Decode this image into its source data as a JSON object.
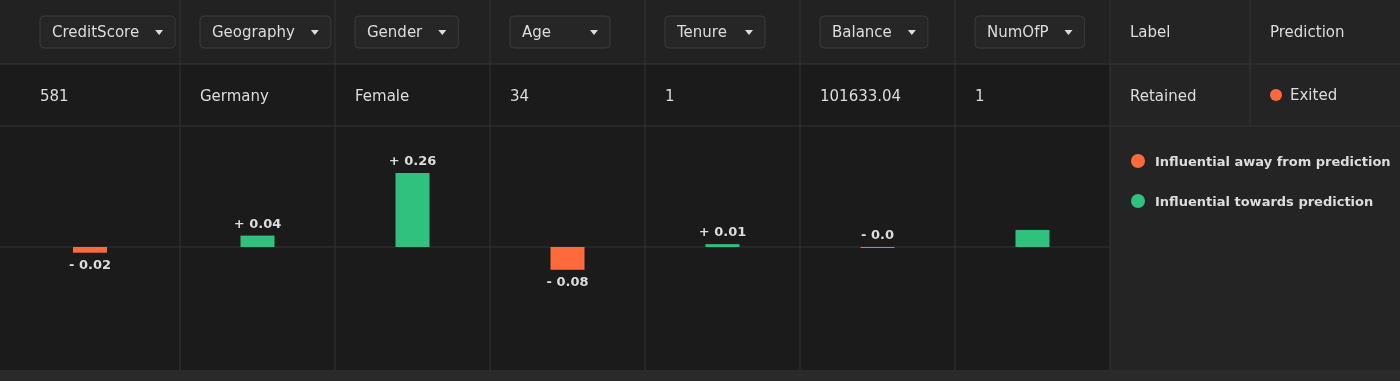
{
  "chart_data": {
    "type": "bar",
    "legend": "right",
    "categories": [
      "CreditScore",
      "Geography",
      "Gender",
      "Age",
      "Tenure",
      "Balance",
      "NumOfP"
    ],
    "series": [
      {
        "name": "Influential away from prediction",
        "color": "#ff6a3d",
        "values": [
          -0.02,
          null,
          null,
          -0.08,
          null,
          0,
          null
        ],
        "value_labels": [
          "- 0.02",
          null,
          null,
          "- 0.08",
          null,
          "- 0.0",
          null
        ]
      },
      {
        "name": "Influential towards prediction",
        "color": "#2ec27e",
        "values": [
          null,
          0.04,
          0.26,
          null,
          0.01,
          null,
          0.06
        ],
        "value_labels": [
          null,
          "+ 0.04",
          "+ 0.26",
          null,
          "+ 0.01",
          null,
          null
        ]
      }
    ],
    "annotations": [
      "581",
      "Germany",
      "Female",
      "34",
      "1",
      "101633.04",
      "1",
      "Label",
      "Prediction",
      "Retained",
      "Exited"
    ]
  }
}
